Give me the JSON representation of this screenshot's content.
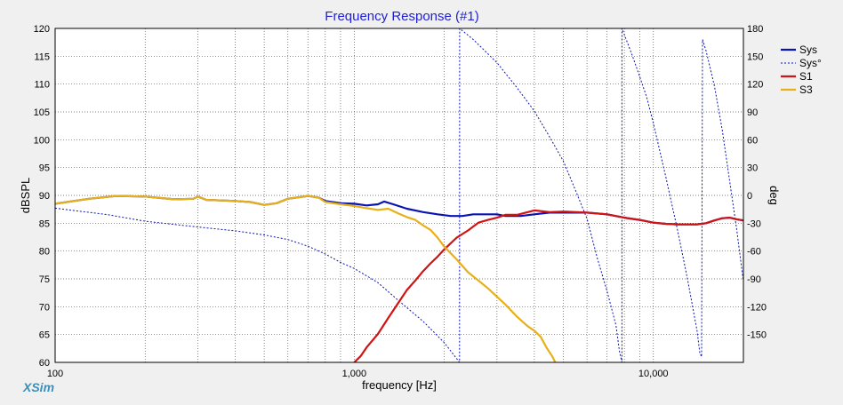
{
  "app": {
    "brand": "XSim"
  },
  "chart_data": {
    "type": "line",
    "title": "Frequency Response (#1)",
    "xlabel": "frequency [Hz]",
    "ylabel": "dBSPL",
    "y2label": "deg",
    "xscale": "log",
    "xlim": [
      100,
      20000
    ],
    "ylim": [
      60,
      120
    ],
    "y2lim": [
      -180,
      180
    ],
    "grid": true,
    "legend_position": "top-right",
    "x_tick_labels": [
      {
        "value": 100,
        "label": "100"
      },
      {
        "value": 1000,
        "label": "1,000"
      },
      {
        "value": 10000,
        "label": "10,000"
      }
    ],
    "y_ticks": [
      60,
      65,
      70,
      75,
      80,
      85,
      90,
      95,
      100,
      105,
      110,
      115,
      120
    ],
    "y2_ticks": [
      -150,
      -120,
      -90,
      -60,
      -30,
      0,
      30,
      60,
      90,
      120,
      150,
      180
    ],
    "series": [
      {
        "name": "Sys",
        "color": "#0a14b4",
        "axis": "left",
        "style": "solid",
        "width": 2.2,
        "points": [
          [
            100,
            88.5
          ],
          [
            130,
            89.4
          ],
          [
            160,
            89.9
          ],
          [
            200,
            89.8
          ],
          [
            250,
            89.3
          ],
          [
            290,
            89.4
          ],
          [
            300,
            89.8
          ],
          [
            320,
            89.2
          ],
          [
            400,
            89.0
          ],
          [
            450,
            88.8
          ],
          [
            500,
            88.3
          ],
          [
            550,
            88.6
          ],
          [
            600,
            89.4
          ],
          [
            700,
            89.9
          ],
          [
            760,
            89.6
          ],
          [
            800,
            89.0
          ],
          [
            900,
            88.6
          ],
          [
            1000,
            88.5
          ],
          [
            1100,
            88.2
          ],
          [
            1200,
            88.4
          ],
          [
            1260,
            88.9
          ],
          [
            1350,
            88.4
          ],
          [
            1500,
            87.6
          ],
          [
            1700,
            87.0
          ],
          [
            1900,
            86.6
          ],
          [
            2100,
            86.3
          ],
          [
            2300,
            86.3
          ],
          [
            2500,
            86.6
          ],
          [
            3000,
            86.6
          ],
          [
            3200,
            86.3
          ],
          [
            3600,
            86.3
          ],
          [
            4000,
            86.6
          ],
          [
            4500,
            86.9
          ],
          [
            5000,
            86.9
          ],
          [
            6000,
            86.9
          ],
          [
            7000,
            86.6
          ],
          [
            8000,
            86.0
          ],
          [
            9000,
            85.6
          ],
          [
            10000,
            85.1
          ],
          [
            11000,
            84.9
          ],
          [
            12000,
            84.8
          ],
          [
            13000,
            84.8
          ],
          [
            14000,
            84.8
          ],
          [
            15000,
            85.0
          ],
          [
            16000,
            85.5
          ],
          [
            17000,
            85.9
          ],
          [
            18000,
            86.0
          ],
          [
            19000,
            85.7
          ],
          [
            20000,
            85.5
          ]
        ]
      },
      {
        "name": "Sys°",
        "color": "#0a14b4",
        "axis": "right",
        "style": "dashed",
        "width": 1,
        "points": [
          [
            100,
            -13.8
          ],
          [
            150,
            -20.8
          ],
          [
            200,
            -27.9
          ],
          [
            300,
            -34.1
          ],
          [
            400,
            -38.2
          ],
          [
            500,
            -42.6
          ],
          [
            600,
            -47.6
          ],
          [
            700,
            -54.8
          ],
          [
            800,
            -63.2
          ],
          [
            900,
            -72.3
          ],
          [
            1000,
            -78.8
          ],
          [
            1200,
            -94.0
          ],
          [
            1400,
            -112.9
          ],
          [
            1700,
            -135.9
          ],
          [
            2000,
            -158.7
          ],
          [
            2250,
            -180
          ],
          [
            2251,
            180
          ],
          [
            2500,
            168
          ],
          [
            3000,
            143
          ],
          [
            3500,
            116
          ],
          [
            4000,
            91
          ],
          [
            4500,
            63
          ],
          [
            5000,
            37
          ],
          [
            5500,
            5
          ],
          [
            6000,
            -25
          ],
          [
            6500,
            -68
          ],
          [
            7000,
            -103
          ],
          [
            7500,
            -140
          ],
          [
            7700,
            -168
          ],
          [
            7850,
            -180
          ],
          [
            7851,
            180
          ],
          [
            8500,
            151
          ],
          [
            9000,
            128
          ],
          [
            9500,
            106
          ],
          [
            10000,
            78
          ],
          [
            11000,
            20
          ],
          [
            12000,
            -35
          ],
          [
            13000,
            -90
          ],
          [
            14000,
            -146
          ],
          [
            14300,
            -170
          ],
          [
            14500,
            -174
          ],
          [
            14600,
            168
          ],
          [
            15000,
            156
          ],
          [
            16000,
            118
          ],
          [
            17000,
            70
          ],
          [
            18000,
            15
          ],
          [
            19000,
            -37
          ],
          [
            20000,
            -93
          ]
        ]
      },
      {
        "name": "S1",
        "color": "#d01414",
        "axis": "left",
        "style": "solid",
        "width": 2.2,
        "points": [
          [
            1000,
            60.0
          ],
          [
            1050,
            61.1
          ],
          [
            1100,
            62.7
          ],
          [
            1200,
            65.1
          ],
          [
            1300,
            68.0
          ],
          [
            1400,
            70.6
          ],
          [
            1500,
            73.0
          ],
          [
            1600,
            74.7
          ],
          [
            1700,
            76.4
          ],
          [
            1800,
            77.8
          ],
          [
            1900,
            79.0
          ],
          [
            2000,
            80.3
          ],
          [
            2100,
            81.4
          ],
          [
            2200,
            82.4
          ],
          [
            2400,
            83.7
          ],
          [
            2600,
            85.1
          ],
          [
            2800,
            85.6
          ],
          [
            3000,
            86.0
          ],
          [
            3200,
            86.5
          ],
          [
            3500,
            86.5
          ],
          [
            4000,
            87.3
          ],
          [
            4500,
            87.0
          ],
          [
            5000,
            87.1
          ],
          [
            6000,
            86.9
          ],
          [
            7000,
            86.6
          ],
          [
            8000,
            86.0
          ],
          [
            9000,
            85.6
          ],
          [
            10000,
            85.1
          ],
          [
            11000,
            84.9
          ],
          [
            12000,
            84.8
          ],
          [
            13000,
            84.8
          ],
          [
            14000,
            84.8
          ],
          [
            15000,
            85.0
          ],
          [
            16000,
            85.5
          ],
          [
            17000,
            85.9
          ],
          [
            18000,
            86.0
          ],
          [
            19000,
            85.7
          ],
          [
            20000,
            85.5
          ]
        ]
      },
      {
        "name": "S3",
        "color": "#e8b018",
        "axis": "left",
        "style": "solid",
        "width": 2.2,
        "points": [
          [
            100,
            88.5
          ],
          [
            130,
            89.4
          ],
          [
            160,
            89.9
          ],
          [
            200,
            89.8
          ],
          [
            250,
            89.3
          ],
          [
            290,
            89.4
          ],
          [
            300,
            89.8
          ],
          [
            320,
            89.2
          ],
          [
            400,
            89.0
          ],
          [
            450,
            88.8
          ],
          [
            500,
            88.3
          ],
          [
            550,
            88.6
          ],
          [
            600,
            89.4
          ],
          [
            700,
            89.9
          ],
          [
            760,
            89.6
          ],
          [
            800,
            88.8
          ],
          [
            900,
            88.4
          ],
          [
            1000,
            88.1
          ],
          [
            1100,
            87.7
          ],
          [
            1200,
            87.4
          ],
          [
            1300,
            87.6
          ],
          [
            1400,
            86.8
          ],
          [
            1500,
            86.1
          ],
          [
            1600,
            85.6
          ],
          [
            1700,
            84.6
          ],
          [
            1800,
            83.8
          ],
          [
            1900,
            82.4
          ],
          [
            2000,
            80.8
          ],
          [
            2200,
            78.5
          ],
          [
            2400,
            76.2
          ],
          [
            2600,
            74.7
          ],
          [
            2800,
            73.3
          ],
          [
            3000,
            71.8
          ],
          [
            3200,
            70.4
          ],
          [
            3500,
            68.2
          ],
          [
            3800,
            66.5
          ],
          [
            4000,
            65.7
          ],
          [
            4200,
            64.6
          ],
          [
            4400,
            62.6
          ],
          [
            4600,
            61.0
          ],
          [
            4700,
            60.0
          ]
        ]
      }
    ]
  }
}
